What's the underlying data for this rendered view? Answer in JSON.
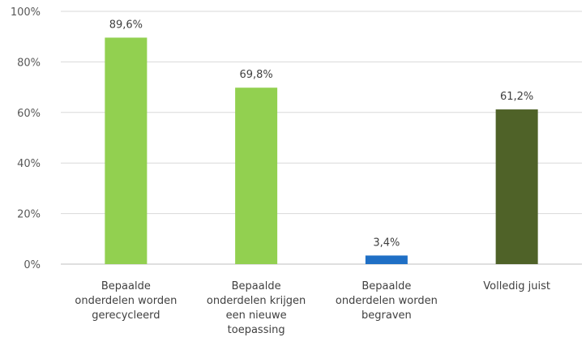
{
  "chart_data": {
    "type": "bar",
    "title": "",
    "xlabel": "",
    "ylabel": "",
    "ylim": [
      0,
      100
    ],
    "y_ticks": [
      0,
      20,
      40,
      60,
      80,
      100
    ],
    "y_tick_labels": [
      "0%",
      "20%",
      "40%",
      "60%",
      "80%",
      "100%"
    ],
    "grid": true,
    "legend": "none",
    "categories": [
      [
        "Bepaalde",
        "onderdelen worden",
        "gerecycleerd"
      ],
      [
        "Bepaalde",
        "onderdelen krijgen",
        "een nieuwe",
        "toepassing"
      ],
      [
        "Bepaalde",
        "onderdelen worden",
        "begraven"
      ],
      [
        "Volledig juist"
      ]
    ],
    "values": [
      89.6,
      69.8,
      3.4,
      61.2
    ],
    "value_labels": [
      "89,6%",
      "69,8%",
      "3,4%",
      "61,2%"
    ],
    "colors": [
      "#92d050",
      "#92d050",
      "#1f6fc5",
      "#4f6228"
    ]
  }
}
